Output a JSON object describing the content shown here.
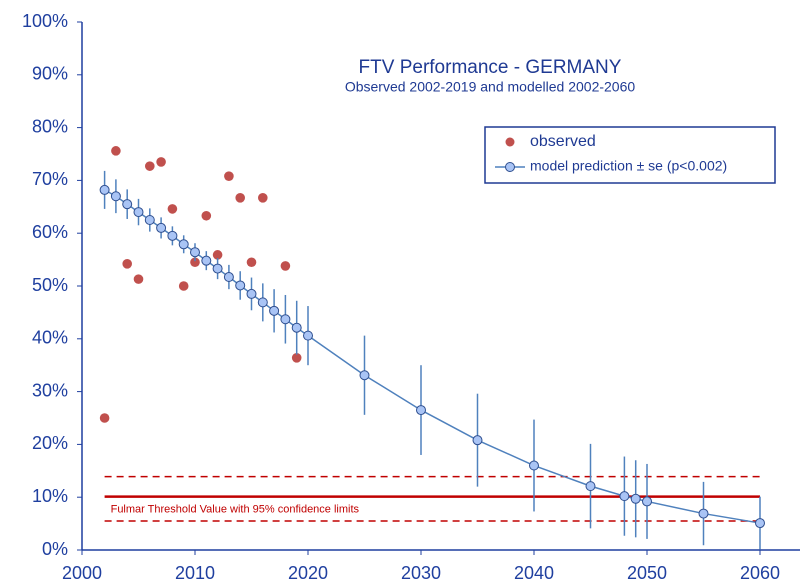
{
  "chart_data": {
    "type": "scatter",
    "title": "FTV Performance - GERMANY",
    "subtitle": "Observed 2002-2019 and modelled  2002-2060",
    "xlim": [
      2000,
      2060
    ],
    "ylim": [
      0,
      100
    ],
    "xticks": [
      2000,
      2010,
      2020,
      2030,
      2040,
      2050,
      2060
    ],
    "yticks": [
      {
        "value": 0,
        "label": "0%"
      },
      {
        "value": 10,
        "label": "10%"
      },
      {
        "value": 20,
        "label": "20%"
      },
      {
        "value": 30,
        "label": "30%"
      },
      {
        "value": 40,
        "label": "40%"
      },
      {
        "value": 50,
        "label": "50%"
      },
      {
        "value": 60,
        "label": "60%"
      },
      {
        "value": 70,
        "label": "70%"
      },
      {
        "value": 80,
        "label": "80%"
      },
      {
        "value": 90,
        "label": "90%"
      },
      {
        "value": 100,
        "label": "100%"
      }
    ],
    "legend": "upper right",
    "series": [
      {
        "name": "observed",
        "color": "#c0504d",
        "x": [
          2002,
          2003,
          2004,
          2005,
          2006,
          2007,
          2008,
          2009,
          2010,
          2011,
          2012,
          2013,
          2014,
          2015,
          2016,
          2017,
          2018,
          2019
        ],
        "values": [
          25.0,
          75.6,
          54.2,
          51.3,
          72.7,
          73.5,
          64.6,
          50.0,
          54.5,
          63.3,
          55.9,
          70.8,
          66.7,
          54.5,
          66.7,
          45.3,
          53.8,
          36.4
        ]
      },
      {
        "name": "model prediction ± se (p<0.002)",
        "color": "#4f81bd",
        "line": true,
        "x": [
          2002,
          2003,
          2004,
          2005,
          2006,
          2007,
          2008,
          2009,
          2010,
          2011,
          2012,
          2013,
          2014,
          2015,
          2016,
          2017,
          2018,
          2019,
          2020,
          2025,
          2030,
          2035,
          2040,
          2045,
          2048,
          2049,
          2050,
          2055,
          2060
        ],
        "values": [
          68.2,
          67.0,
          65.5,
          64.0,
          62.5,
          61.0,
          59.5,
          57.9,
          56.4,
          54.8,
          53.3,
          51.7,
          50.1,
          48.5,
          46.9,
          45.3,
          43.7,
          42.1,
          40.6,
          33.1,
          26.5,
          20.8,
          16.0,
          12.1,
          10.2,
          9.7,
          9.2,
          6.9,
          5.1
        ],
        "errors": [
          3.6,
          3.2,
          2.8,
          2.5,
          2.2,
          2.0,
          1.8,
          1.7,
          1.7,
          1.8,
          2.0,
          2.3,
          2.7,
          3.1,
          3.6,
          4.1,
          4.6,
          5.1,
          5.6,
          7.5,
          8.5,
          8.8,
          8.7,
          8.0,
          7.5,
          7.3,
          7.1,
          6.0,
          5.0
        ]
      }
    ],
    "threshold": {
      "label": "Fulmar Threshold Value with 95% confidence limits",
      "value": 10.1,
      "lower": 5.5,
      "upper": 13.9,
      "color": "#c00000",
      "x": [
        2002,
        2060
      ]
    }
  }
}
